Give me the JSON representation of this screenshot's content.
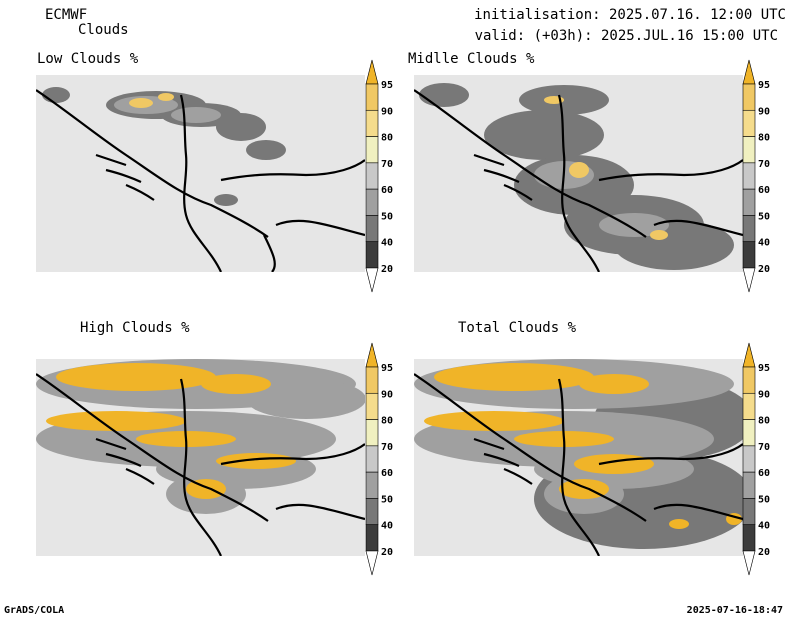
{
  "header": {
    "model": "ECMWF",
    "product": "Clouds",
    "init_line": "initialisation: 2025.07.16. 12:00 UTC",
    "valid_line": "valid: (+03h): 2025.JUL.16 15:00 UTC"
  },
  "panels": [
    {
      "id": "low",
      "title": "Low Clouds %"
    },
    {
      "id": "mid",
      "title": "Midlle Clouds %"
    },
    {
      "id": "high",
      "title": "High Clouds %"
    },
    {
      "id": "total",
      "title": "Total Clouds %"
    }
  ],
  "colorbar": {
    "levels": [
      "20",
      "40",
      "50",
      "60",
      "70",
      "80",
      "90",
      "95"
    ],
    "colors": [
      "#ffffff",
      "#3c3c3c",
      "#787878",
      "#a0a0a0",
      "#c8c8c8",
      "#f0f0c0",
      "#f5dc8c",
      "#f0c864",
      "#f0b428"
    ]
  },
  "footer": {
    "software": "GrADS/COLA",
    "timestamp": "2025-07-16-18:47"
  }
}
